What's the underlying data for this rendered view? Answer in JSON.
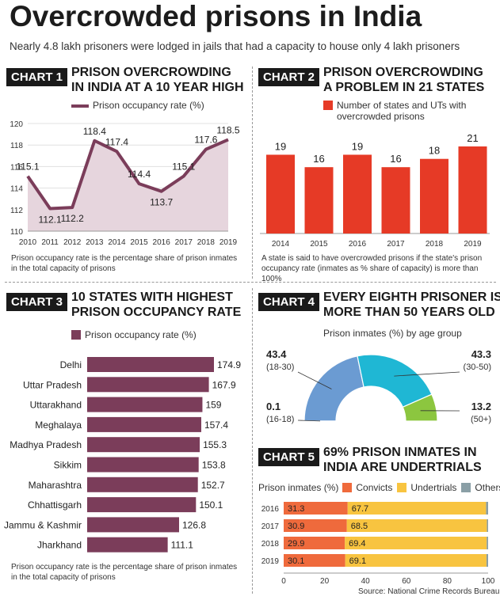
{
  "title": "Overcrowded prisons in India",
  "subtitle": "Nearly 4.8 lakh prisoners were lodged in jails that had a capacity to house only 4 lakh prisoners",
  "source": "Source: National Crime Records Bureau",
  "colors": {
    "maroon": "#7b3d5a",
    "area": "#e6d5dd",
    "red": "#e63a26",
    "blue": "#6b9bd2",
    "cyan": "#1fb7d4",
    "green": "#8cc63f",
    "orange": "#ef6a3c",
    "yellow": "#f8c440",
    "gray": "#8a9fa6"
  },
  "chart1": {
    "tag": "CHART 1",
    "heading1": "PRISON OVERCROWDING",
    "heading2": "IN INDIA AT A 10 YEAR HIGH",
    "legend": "Prison occupancy rate (%)",
    "note": "Prison occupancy rate is the percentage share of prison inmates in the total capacity of prisons"
  },
  "chart2": {
    "tag": "CHART 2",
    "heading1": "PRISON OVERCROWDING",
    "heading2": "A PROBLEM IN 21 STATES",
    "legend": "Number of states and UTs with overcrowded prisons",
    "note": "A state is said to have overcrowded prisons if the state's prison occupancy rate (inmates as % share of capacity) is more than 100%"
  },
  "chart3": {
    "tag": "CHART 3",
    "heading1": "10 STATES WITH HIGHEST",
    "heading2": "PRISON OCCUPANCY RATE",
    "legend": "Prison occupancy rate (%)",
    "note": "Prison occupancy rate is the percentage share of prison inmates in the total capacity of prisons"
  },
  "chart4": {
    "tag": "CHART 4",
    "heading1": "EVERY EIGHTH PRISONER IS",
    "heading2": "MORE THAN 50 YEARS OLD",
    "subtitle": "Prison inmates (%) by age group"
  },
  "chart5": {
    "tag": "CHART 5",
    "heading1": "69% PRISON INMATES IN",
    "heading2": "INDIA ARE UNDERTRIALS",
    "legend_title": "Prison inmates (%)"
  },
  "chart_data": [
    {
      "type": "line",
      "x": [
        "2010",
        "2011",
        "2012",
        "2013",
        "2014",
        "2015",
        "2016",
        "2017",
        "2018",
        "2019"
      ],
      "series": [
        {
          "name": "Prison occupancy rate (%)",
          "values": [
            115.1,
            112.1,
            112.2,
            118.4,
            117.4,
            114.4,
            113.7,
            115.1,
            117.6,
            118.5
          ]
        }
      ],
      "yticks": [
        "110",
        "112",
        "114",
        "116",
        "118",
        "120"
      ],
      "ylim": [
        110,
        120
      ]
    },
    {
      "type": "bar",
      "categories": [
        "2014",
        "2015",
        "2016",
        "2017",
        "2018",
        "2019"
      ],
      "series": [
        {
          "name": "Number of states and UTs with overcrowded prisons",
          "values": [
            19,
            16,
            19,
            16,
            18,
            21
          ]
        }
      ],
      "ylim": [
        0,
        21
      ]
    },
    {
      "type": "bar",
      "orientation": "horizontal",
      "categories": [
        "Delhi",
        "Uttar Pradesh",
        "Uttarakhand",
        "Meghalaya",
        "Madhya Pradesh",
        "Sikkim",
        "Maharashtra",
        "Chhattisgarh",
        "Jammu & Kashmir",
        "Jharkhand"
      ],
      "series": [
        {
          "name": "Prison occupancy rate (%)",
          "values": [
            174.9,
            167.9,
            159,
            157.4,
            155.3,
            153.8,
            152.7,
            150.1,
            126.8,
            111.1
          ]
        }
      ],
      "labels": [
        "174.9",
        "167.9",
        "159",
        "157.4",
        "155.3",
        "153.8",
        "152.7",
        "150.1",
        "126.8",
        "111.1"
      ]
    },
    {
      "type": "pie",
      "variant": "semicircle-donut",
      "slices": [
        {
          "label": "(16-18)",
          "value": 0.1,
          "display": "0.1",
          "color": "#1fb7d4"
        },
        {
          "label": "(18-30)",
          "value": 43.4,
          "display": "43.4",
          "color": "#6b9bd2"
        },
        {
          "label": "(30-50)",
          "value": 43.3,
          "display": "43.3",
          "color": "#1fb7d4"
        },
        {
          "label": "(50+)",
          "value": 13.2,
          "display": "13.2",
          "color": "#8cc63f"
        }
      ]
    },
    {
      "type": "bar",
      "orientation": "horizontal",
      "stacked": true,
      "categories": [
        "2016",
        "2017",
        "2018",
        "2019"
      ],
      "series": [
        {
          "name": "Convicts",
          "values": [
            31.3,
            30.9,
            29.9,
            30.1
          ],
          "labels": [
            "31.3",
            "30.9",
            "29.9",
            "30.1"
          ]
        },
        {
          "name": "Undertrials",
          "values": [
            67.7,
            68.5,
            69.4,
            69.1
          ],
          "labels": [
            "67.7",
            "68.5",
            "69.4",
            "69.1"
          ]
        },
        {
          "name": "Others",
          "values": [
            1.0,
            0.6,
            0.7,
            0.8
          ]
        }
      ],
      "xticks": [
        "0",
        "20",
        "40",
        "60",
        "80",
        "100"
      ],
      "xlim": [
        0,
        100
      ]
    }
  ]
}
